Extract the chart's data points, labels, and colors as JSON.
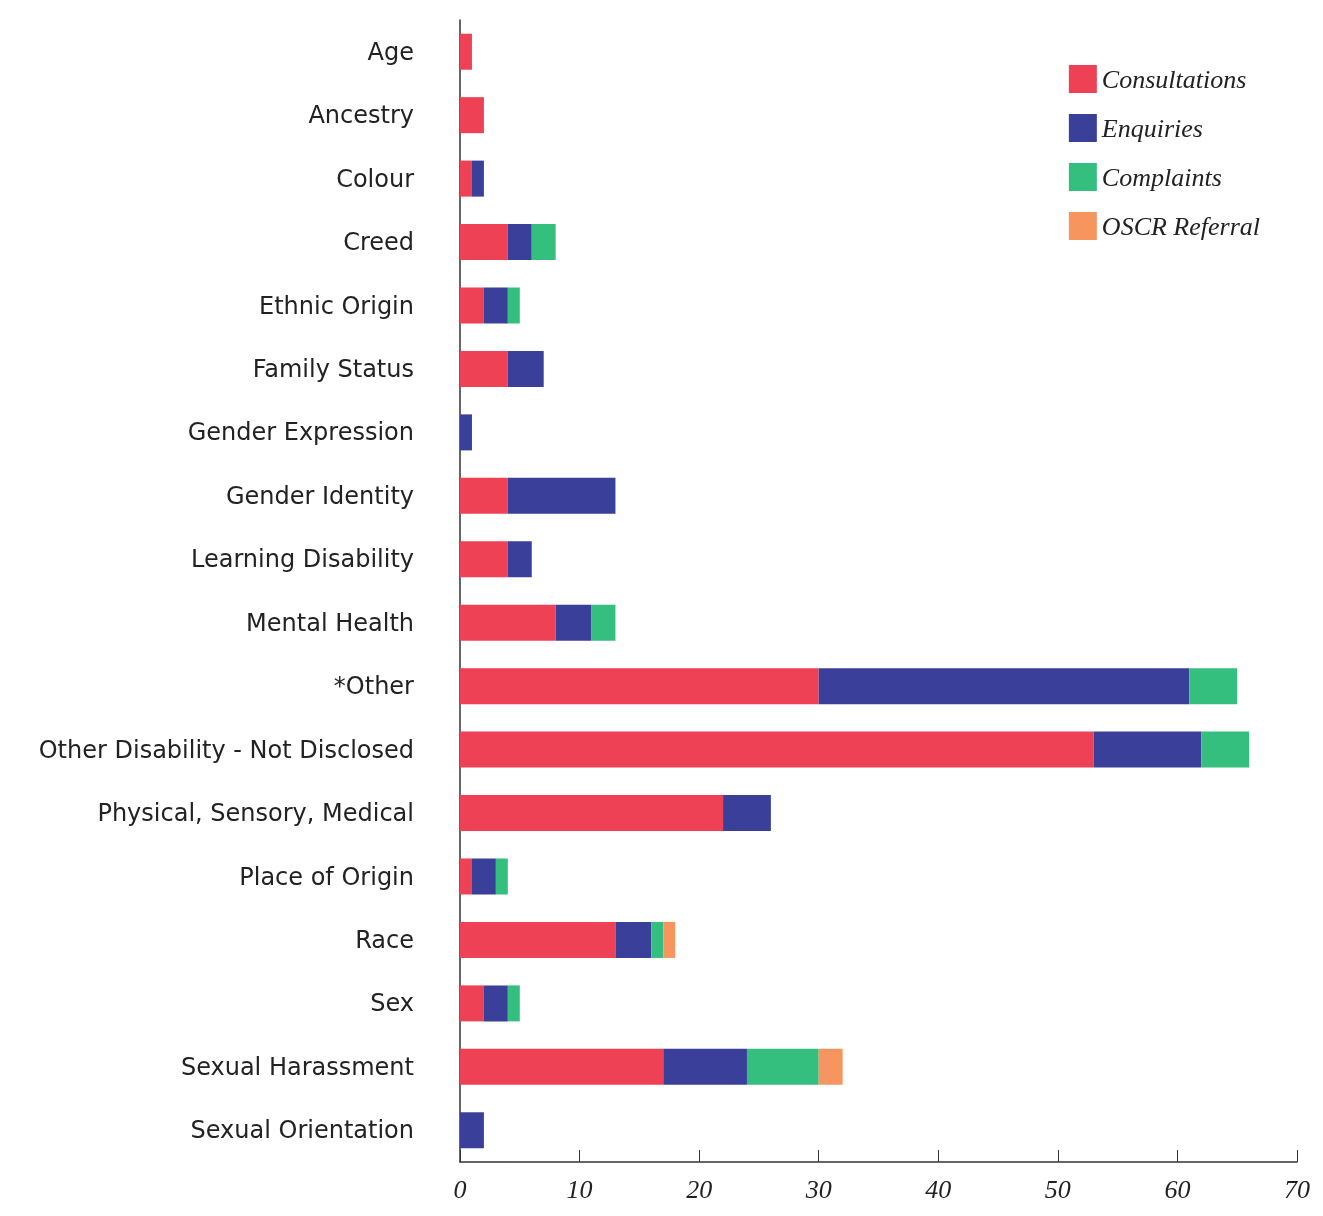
{
  "chart_data": {
    "type": "bar",
    "orientation": "horizontal",
    "stacked": true,
    "categories": [
      "Age",
      "Ancestry",
      "Colour",
      "Creed",
      "Ethnic Origin",
      "Family Status",
      "Gender Expression",
      "Gender Identity",
      "Learning Disability",
      "Mental Health",
      "*Other",
      "Other Disability - Not Disclosed",
      "Physical, Sensory, Medical",
      "Place of Origin",
      "Race",
      "Sex",
      "Sexual Harassment",
      "Sexual Orientation"
    ],
    "series": [
      {
        "name": "Consultations",
        "color": "#ee4155",
        "values": [
          1,
          2,
          1,
          4,
          2,
          4,
          0,
          4,
          4,
          8,
          30,
          53,
          22,
          1,
          13,
          2,
          17,
          0
        ]
      },
      {
        "name": "Enquiries",
        "color": "#3a3f9a",
        "values": [
          0,
          0,
          1,
          2,
          2,
          3,
          1,
          9,
          2,
          3,
          31,
          9,
          4,
          2,
          3,
          2,
          7,
          2
        ]
      },
      {
        "name": "Complaints",
        "color": "#35bf7f",
        "values": [
          0,
          0,
          0,
          2,
          1,
          0,
          0,
          0,
          0,
          2,
          4,
          4,
          0,
          1,
          1,
          1,
          6,
          0
        ]
      },
      {
        "name": "OSCR Referral",
        "color": "#f7955e",
        "values": [
          0,
          0,
          0,
          0,
          0,
          0,
          0,
          0,
          0,
          0,
          0,
          0,
          0,
          0,
          1,
          0,
          2,
          0
        ]
      }
    ],
    "xlim": [
      0,
      70
    ],
    "xticks": [
      0,
      10,
      20,
      30,
      40,
      50,
      60,
      70
    ],
    "grid": false,
    "legend": "top right"
  }
}
